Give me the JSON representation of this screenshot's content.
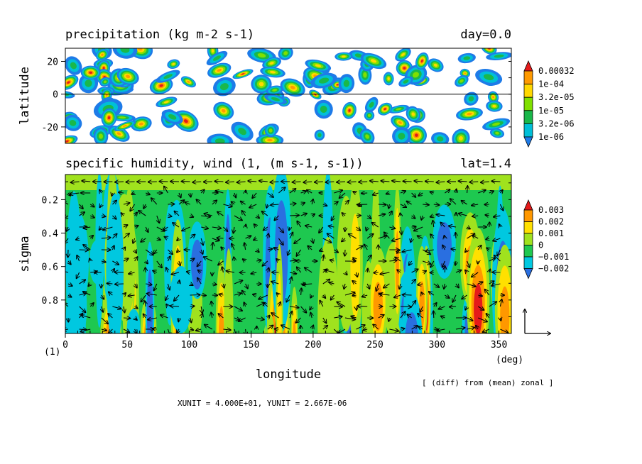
{
  "colors": {
    "c1e06": "#1e7be8",
    "c32e06": "#00bfd8",
    "c1e05": "#1ab84a",
    "c32e05": "#80e000",
    "c1e04": "#ffd800",
    "c32e04": "#ff9a00",
    "c_max": "#e51a1a",
    "q_m002": "#2a6fe0",
    "q_m001": "#00c8e0",
    "q_0": "#1ec850",
    "q_001": "#a0e21e",
    "q_002": "#ffe000",
    "q_003": "#ff9800",
    "q_max": "#e51a1a"
  },
  "chart_data": [
    {
      "type": "heatmap",
      "title": "precipitation (kg m-2 s-1)",
      "title_right": "day=0.0",
      "xlim": [
        0,
        360
      ],
      "ylim": [
        -30,
        28
      ],
      "ylabel": "latitude",
      "yticks": [
        "20",
        "0",
        "-20"
      ],
      "ytick_values": [
        20,
        0,
        -20
      ],
      "colorbar_levels": [
        "0.00032",
        "1e-04",
        "3.2e-05",
        "1e-05",
        "3.2e-06",
        "1e-06"
      ],
      "colorbar_values": [
        0.00032,
        0.0001,
        3.2e-05,
        1e-05,
        3.2e-06,
        1e-06
      ],
      "scale": "log",
      "equator_line": true
    },
    {
      "type": "heatmap",
      "title": "specific humidity, wind (1, (m s-1, s-1))",
      "title_right": "lat=1.4",
      "xlim": [
        0,
        360
      ],
      "ylim": [
        1.0,
        0.05
      ],
      "xlabel": "longitude",
      "xunit_label": "(deg)",
      "ylabel": "sigma",
      "yunit_label": "(1)",
      "xticks": [
        "0",
        "50",
        "100",
        "150",
        "200",
        "250",
        "300",
        "350"
      ],
      "xtick_values": [
        0,
        50,
        100,
        150,
        200,
        250,
        300,
        350
      ],
      "yticks": [
        "0.2",
        "0.4",
        "0.6",
        "0.8"
      ],
      "ytick_values": [
        0.2,
        0.4,
        0.6,
        0.8
      ],
      "colorbar_levels": [
        "0.003",
        "0.002",
        "0.001",
        "0",
        "−0.001",
        "−0.002"
      ],
      "colorbar_values": [
        0.003,
        0.002,
        0.001,
        0,
        -0.001,
        -0.002
      ],
      "vector_overlay": "wind arrows",
      "note": "[ (diff) from (mean) zonal ]"
    }
  ],
  "footer": "XUNIT = 4.000E+01, YUNIT = 2.667E-06"
}
